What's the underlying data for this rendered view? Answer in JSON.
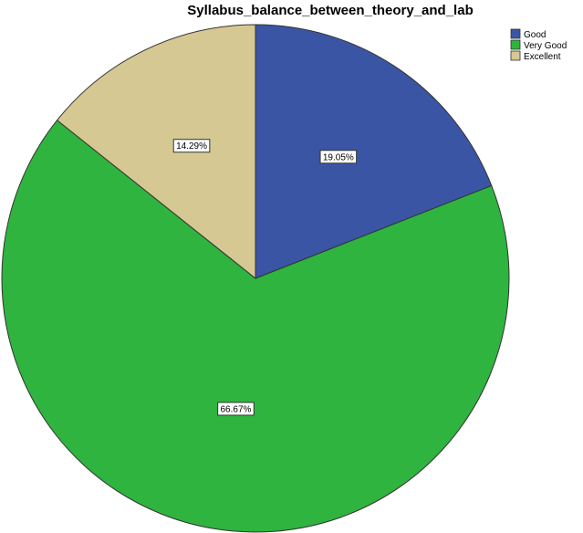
{
  "chart_data": {
    "type": "pie",
    "title": "Syllabus_balance_between_theory_and_lab",
    "categories": [
      "Good",
      "Very Good",
      "Excellent"
    ],
    "values": [
      19.05,
      66.67,
      14.29
    ],
    "data_labels": [
      "19.05%",
      "66.67%",
      "14.29%"
    ],
    "colors": [
      "#3b55a5",
      "#2fb43f",
      "#d6c892"
    ],
    "legend": {
      "position": "top-right",
      "entries": [
        "Good",
        "Very Good",
        "Excellent"
      ]
    }
  }
}
